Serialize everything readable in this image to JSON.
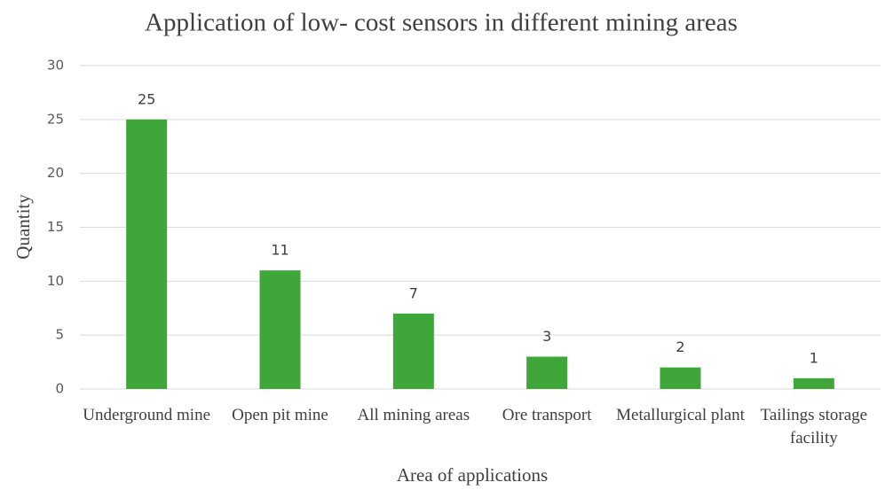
{
  "chart_data": {
    "type": "bar",
    "title": "Application of low- cost sensors in different mining areas",
    "x_label": "Area of applications",
    "y_label": "Quantity",
    "categories": [
      "Underground mine",
      "Open pit mine",
      "All mining areas",
      "Ore transport",
      "Metallurgical plant",
      "Tailings storage facility"
    ],
    "values": [
      25,
      11,
      7,
      3,
      2,
      1
    ],
    "color": "#3fa73a",
    "ylim": [
      0,
      30
    ],
    "yticks": [
      0,
      5,
      10,
      15,
      20,
      25,
      30
    ],
    "grid": true
  }
}
